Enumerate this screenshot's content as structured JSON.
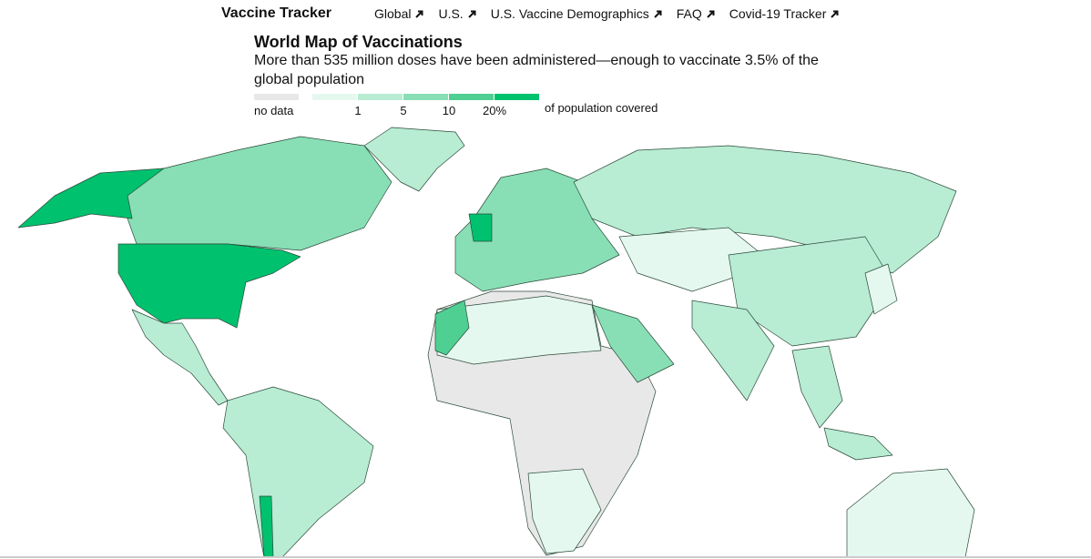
{
  "header": {
    "brand": "Vaccine Tracker",
    "nav": [
      "Global",
      "U.S.",
      "U.S. Vaccine Demographics",
      "FAQ",
      "Covid-19 Tracker"
    ]
  },
  "title": "World Map of Vaccinations",
  "subtitle": "More than 535 million doses have been administered—enough to vaccinate 3.5% of the global population",
  "legend": {
    "no_data": "no data",
    "colors": [
      "#e5f8ef",
      "#b8ecd3",
      "#88dfb5",
      "#4fcf92",
      "#00c16e"
    ],
    "ticks": [
      1,
      5,
      10,
      {
        "value": 20,
        "label": "20%"
      }
    ],
    "caption": "of population covered"
  }
}
